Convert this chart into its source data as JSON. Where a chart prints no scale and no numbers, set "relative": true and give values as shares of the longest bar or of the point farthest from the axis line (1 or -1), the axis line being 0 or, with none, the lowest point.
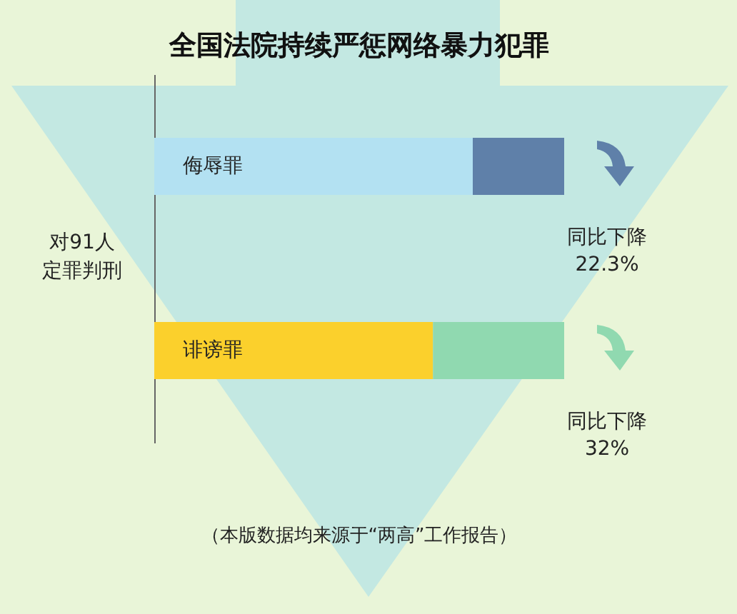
{
  "chart_data": {
    "type": "bar",
    "orientation": "horizontal",
    "stacked": true,
    "relative": true,
    "title": "全国法院持续严惩网络暴力犯罪",
    "ylabel": "对91人定罪判刑",
    "categories": [
      "侮辱罪",
      "诽谤罪"
    ],
    "series": [
      {
        "colors": [
          "#b3e1f2",
          "#fbd02c"
        ],
        "values": [
          0.777,
          0.68
        ]
      },
      {
        "colors": [
          "#5f80a9",
          "#90d9b0"
        ],
        "values": [
          0.223,
          0.32
        ]
      }
    ],
    "annotations": [
      "同比下降\n22.3%",
      "同比下降\n32%",
      "（本版数据均来源于“两高”工作报告）"
    ]
  }
}
